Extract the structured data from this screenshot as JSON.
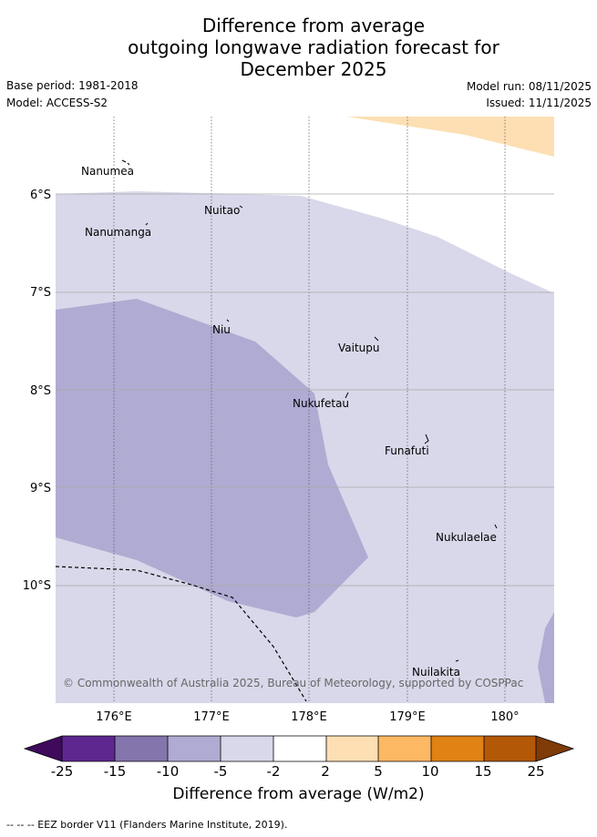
{
  "title": {
    "line1": "Difference from average",
    "line2": "outgoing longwave radiation forecast for",
    "line3": "December 2025"
  },
  "meta": {
    "base_period": "Base period: 1981-2018",
    "model": "Model: ACCESS-S2",
    "model_run": "Model run: 08/11/2025",
    "issued": "Issued: 11/11/2025"
  },
  "map": {
    "lat_labels": [
      "6°S",
      "7°S",
      "8°S",
      "9°S",
      "10°S"
    ],
    "lon_labels": [
      "176°E",
      "177°E",
      "178°E",
      "179°E",
      "180°"
    ],
    "islands": [
      "Nanumea",
      "Nuitao",
      "Nanumanga",
      "Niu",
      "Vaitupu",
      "Nukufetau",
      "Funafuti",
      "Nukulaelae",
      "Nuilakita"
    ],
    "copyright": "© Commonwealth of Australia 2025, Bureau of Meteorology, supported by COSPPac"
  },
  "colorbar": {
    "ticks": [
      "-25",
      "-15",
      "-10",
      "-5",
      "-2",
      "2",
      "5",
      "10",
      "15",
      "25"
    ],
    "colors": [
      "#3f0a5c",
      "#5e2790",
      "#8575ad",
      "#b0abd2",
      "#d8d8ea",
      "#ffffff",
      "#fddfb3",
      "#fdb863",
      "#e08214",
      "#b35806",
      "#7f3b08"
    ],
    "title": "Difference from average (W/m2)"
  },
  "footnote": "-- -- -- EEZ border V11 (Flanders Marine Institute, 2019)."
}
